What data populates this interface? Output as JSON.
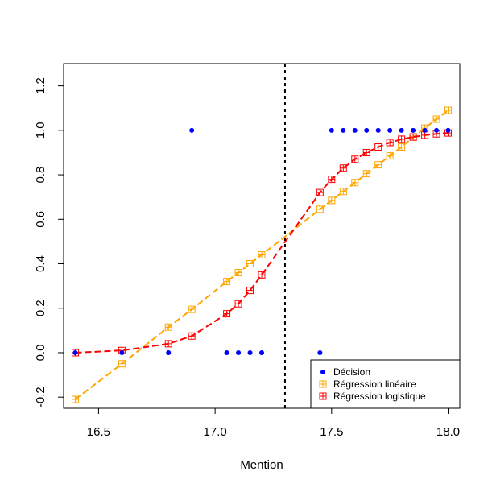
{
  "chart_data": {
    "type": "scatter",
    "xlabel": "Mention",
    "ylabel": "",
    "xlim": [
      16.35,
      18.05
    ],
    "ylim": [
      -0.25,
      1.3
    ],
    "x_ticks": [
      16.5,
      17.0,
      17.5,
      18.0
    ],
    "x_tick_labels": [
      "16.5",
      "17.0",
      "17.5",
      "18.0"
    ],
    "y_ticks": [
      -0.2,
      0.0,
      0.2,
      0.4,
      0.6,
      0.8,
      1.0,
      1.2
    ],
    "y_tick_labels": [
      "-0.2",
      "0.0",
      "0.2",
      "0.4",
      "0.6",
      "0.8",
      "1.0",
      "1.2"
    ],
    "threshold_x": 17.3,
    "legend_position": "bottom-right",
    "series": [
      {
        "name": "Décision",
        "color": "#0000ff",
        "style": "points",
        "x": [
          16.4,
          16.6,
          16.8,
          16.9,
          17.05,
          17.1,
          17.15,
          17.2,
          17.45,
          17.5,
          17.55,
          17.6,
          17.65,
          17.7,
          17.75,
          17.8,
          17.85,
          17.9,
          17.95,
          18.0
        ],
        "y": [
          0,
          0,
          0,
          1,
          0,
          0,
          0,
          0,
          0,
          1,
          1,
          1,
          1,
          1,
          1,
          1,
          1,
          1,
          1,
          1
        ]
      },
      {
        "name": "Régression linéaire",
        "color": "#ffa500",
        "style": "squares-dashed",
        "x": [
          16.4,
          16.6,
          16.8,
          16.9,
          17.05,
          17.1,
          17.15,
          17.2,
          17.45,
          17.5,
          17.55,
          17.6,
          17.65,
          17.7,
          17.75,
          17.8,
          17.85,
          17.9,
          17.95,
          18.0
        ],
        "y": [
          -0.21,
          -0.05,
          0.115,
          0.195,
          0.32,
          0.36,
          0.4,
          0.44,
          0.645,
          0.685,
          0.725,
          0.765,
          0.805,
          0.845,
          0.885,
          0.925,
          0.97,
          1.01,
          1.05,
          1.09
        ]
      },
      {
        "name": "Régression logistique",
        "color": "#ff0000",
        "style": "squares-dashed",
        "x": [
          16.4,
          16.6,
          16.8,
          16.9,
          17.05,
          17.1,
          17.15,
          17.2,
          17.45,
          17.5,
          17.55,
          17.6,
          17.65,
          17.7,
          17.75,
          17.8,
          17.85,
          17.9,
          17.95,
          18.0
        ],
        "y": [
          0.0,
          0.01,
          0.04,
          0.075,
          0.175,
          0.22,
          0.28,
          0.35,
          0.72,
          0.78,
          0.83,
          0.87,
          0.9,
          0.925,
          0.945,
          0.96,
          0.97,
          0.978,
          0.984,
          0.988
        ]
      }
    ]
  }
}
